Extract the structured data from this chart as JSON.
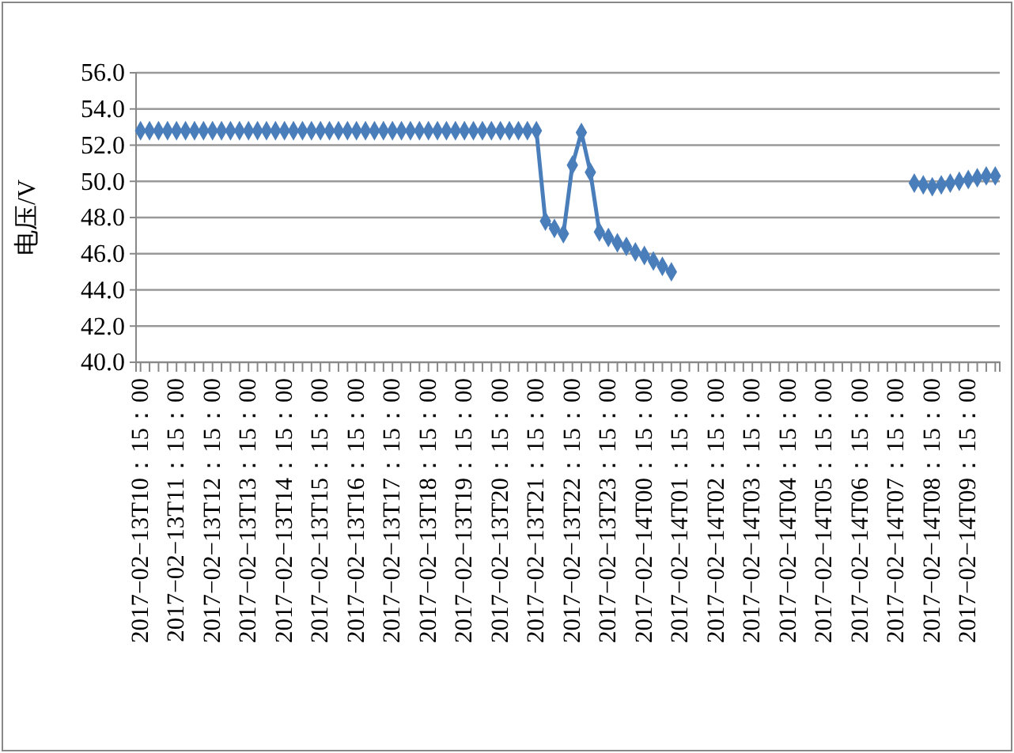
{
  "chart_data": {
    "type": "line",
    "ylabel": "电压/V",
    "categories": [
      "2017−02−13T10：15：00",
      null,
      null,
      null,
      "2017−02−13T11：15：00",
      null,
      null,
      null,
      "2017−02−13T12：15：00",
      null,
      null,
      null,
      "2017−02−13T13：15：00",
      null,
      null,
      null,
      "2017−02−13T14：15：00",
      null,
      null,
      null,
      "2017−02−13T15：15：00",
      null,
      null,
      null,
      "2017−02−13T16：15：00",
      null,
      null,
      null,
      "2017−02−13T17：15：00",
      null,
      null,
      null,
      "2017−02−13T18：15：00",
      null,
      null,
      null,
      "2017−02−13T19：15：00",
      null,
      null,
      null,
      "2017−02−13T20：15：00",
      null,
      null,
      null,
      "2017−02−13T21：15：00",
      null,
      null,
      null,
      "2017−02−13T22：15：00",
      null,
      null,
      null,
      "2017−02−13T23：15：00",
      null,
      null,
      null,
      "2017−02−14T00：15：00",
      null,
      null,
      null,
      "2017−02−14T01：15：00",
      null,
      null,
      null,
      "2017−02−14T02：15：00",
      null,
      null,
      null,
      "2017−02−14T03：15：00",
      null,
      null,
      null,
      "2017−02−14T04：15：00",
      null,
      null,
      null,
      "2017−02−14T05：15：00",
      null,
      null,
      null,
      "2017−02−14T06：15：00",
      null,
      null,
      null,
      "2017−02−14T07：15：00",
      null,
      null,
      null,
      "2017−02−14T08：15：00",
      null,
      null,
      null,
      "2017−02−14T09：15：00",
      null,
      null,
      null
    ],
    "series": [
      {
        "color": "#4a7ebb",
        "values": [
          52.8,
          52.8,
          52.8,
          52.8,
          52.8,
          52.8,
          52.8,
          52.8,
          52.8,
          52.8,
          52.8,
          52.8,
          52.8,
          52.8,
          52.8,
          52.8,
          52.8,
          52.8,
          52.8,
          52.8,
          52.8,
          52.8,
          52.8,
          52.8,
          52.8,
          52.8,
          52.8,
          52.8,
          52.8,
          52.8,
          52.8,
          52.8,
          52.8,
          52.8,
          52.8,
          52.8,
          52.8,
          52.8,
          52.8,
          52.8,
          52.8,
          52.8,
          52.8,
          52.8,
          52.8,
          47.8,
          47.4,
          47.1,
          50.9,
          52.7,
          50.5,
          47.2,
          46.9,
          46.6,
          46.4,
          46.1,
          45.9,
          45.6,
          45.3,
          45.0,
          null,
          null,
          null,
          null,
          null,
          null,
          null,
          null,
          null,
          null,
          null,
          null,
          null,
          null,
          null,
          null,
          null,
          null,
          null,
          null,
          null,
          null,
          null,
          null,
          null,
          null,
          49.9,
          49.8,
          49.7,
          49.8,
          49.9,
          50.0,
          50.1,
          50.2,
          50.3,
          50.3
        ]
      }
    ],
    "ylim": [
      40,
      56
    ],
    "yticks": [
      {
        "value": 40,
        "label": "40.0"
      },
      {
        "value": 42,
        "label": "42.0"
      },
      {
        "value": 44,
        "label": "44.0"
      },
      {
        "value": 46,
        "label": "46.0"
      },
      {
        "value": 48,
        "label": "48.0"
      },
      {
        "value": 50,
        "label": "50.0"
      },
      {
        "value": 52,
        "label": "52.0"
      },
      {
        "value": 54,
        "label": "54.0"
      },
      {
        "value": 56,
        "label": "56.0"
      }
    ],
    "grid": "y",
    "marker": "diamond",
    "line_style": "solid"
  }
}
